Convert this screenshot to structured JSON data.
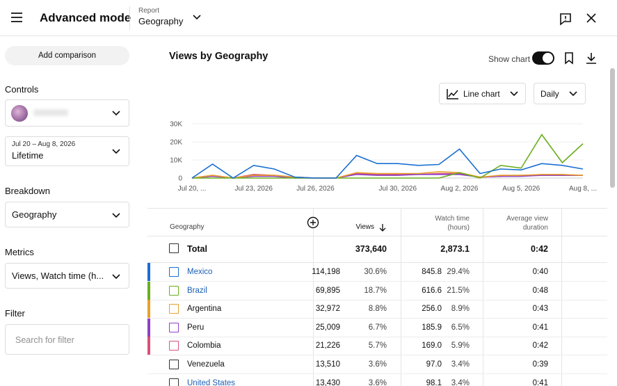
{
  "header": {
    "title": "Advanced mode",
    "report_label": "Report",
    "report_value": "Geography"
  },
  "sidebar": {
    "add_comparison": "Add comparison",
    "controls_label": "Controls",
    "date_range": "Jul 20 – Aug 8, 2026",
    "period": "Lifetime",
    "breakdown_label": "Breakdown",
    "breakdown_value": "Geography",
    "metrics_label": "Metrics",
    "metrics_value": "Views, Watch time (h...",
    "filter_label": "Filter",
    "filter_placeholder": "Search for filter"
  },
  "panel": {
    "title": "Views by Geography",
    "show_chart": "Show chart",
    "chart_type": "Line chart",
    "interval": "Daily"
  },
  "chart_data": {
    "type": "line",
    "categories": [
      "Jul 20, ...",
      null,
      null,
      "Jul 23, 2026",
      null,
      null,
      "Jul 26, 2026",
      null,
      null,
      null,
      "Jul 30, 2026",
      null,
      null,
      "Aug 2, 2026",
      null,
      null,
      "Aug 5, 2026",
      null,
      null,
      "Aug 8, ..."
    ],
    "ylim": [
      0,
      30000
    ],
    "yticks": [
      0,
      {
        "value": 10000,
        "label": "10K"
      },
      {
        "value": 20000,
        "label": "20K"
      },
      {
        "value": 30000,
        "label": "30K"
      }
    ],
    "grid": true,
    "series": [
      {
        "name": "Mexico",
        "color": "#1a6fd1",
        "values": [
          0,
          7700,
          0,
          7000,
          5000,
          500,
          0,
          0,
          12500,
          8000,
          8000,
          7000,
          7500,
          16000,
          2500,
          5000,
          4500,
          8000,
          7000,
          5000
        ]
      },
      {
        "name": "Brazil",
        "color": "#6aae1e",
        "values": [
          0,
          0,
          0,
          0,
          0,
          0,
          0,
          0,
          0,
          0,
          0,
          0,
          0,
          3000,
          0,
          7000,
          5500,
          24000,
          8500,
          19000
        ]
      },
      {
        "name": "Argentina",
        "color": "#e9a02a",
        "values": [
          0,
          1500,
          0,
          1500,
          1500,
          500,
          0,
          0,
          3000,
          2500,
          2500,
          2500,
          3500,
          3000,
          500,
          1500,
          1500,
          2000,
          2000,
          1500
        ]
      },
      {
        "name": "Peru",
        "color": "#8e3fc5",
        "values": [
          0,
          1000,
          0,
          1000,
          1000,
          0,
          0,
          0,
          2000,
          1500,
          1500,
          2000,
          2000,
          2000,
          500,
          1000,
          1000,
          1500,
          1500,
          1500
        ]
      },
      {
        "name": "Colombia",
        "color": "#d9507a",
        "values": [
          0,
          1500,
          0,
          2000,
          1500,
          500,
          0,
          0,
          2500,
          2000,
          2000,
          2000,
          2500,
          2500,
          500,
          1000,
          1500,
          1500,
          1500,
          1500
        ]
      }
    ]
  },
  "table": {
    "columns": [
      "Geography",
      "Views",
      "Watch time (hours)",
      "Average view duration"
    ],
    "total": {
      "name": "Total",
      "views": "373,640",
      "watch_time": "2,873.1",
      "avg_duration": "0:42"
    },
    "rows": [
      {
        "views": "114,198",
        "views_share": "30.6%",
        "watch_time": "845.8",
        "watch_share": "29.4%",
        "avg_duration": "0:40"
      },
      {
        "views": "69,895",
        "views_share": "18.7%",
        "watch_time": "616.6",
        "watch_share": "21.5%",
        "avg_duration": "0:48"
      },
      {
        "views": "32,972",
        "views_share": "8.8%",
        "watch_time": "256.0",
        "watch_share": "8.9%",
        "avg_duration": "0:43"
      },
      {
        "views": "25,009",
        "views_share": "6.7%",
        "watch_time": "185.9",
        "watch_share": "6.5%",
        "avg_duration": "0:41"
      },
      {
        "views": "21,226",
        "views_share": "5.7%",
        "watch_time": "169.0",
        "watch_share": "5.9%",
        "avg_duration": "0:42"
      },
      {
        "name": "Venezuela",
        "views": "13,510",
        "views_share": "3.6%",
        "watch_time": "97.0",
        "watch_share": "3.4%",
        "avg_duration": "0:39"
      },
      {
        "name": "United States",
        "views": "13,430",
        "views_share": "3.6%",
        "watch_time": "98.1",
        "watch_share": "3.4%",
        "avg_duration": "0:41"
      }
    ]
  }
}
